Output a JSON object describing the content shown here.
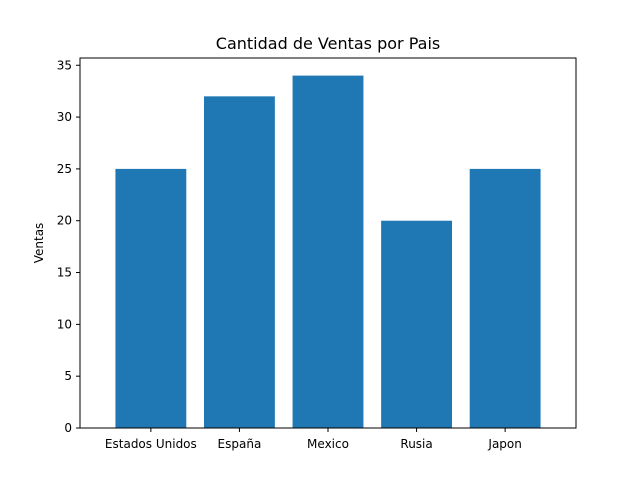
{
  "chart_data": {
    "type": "bar",
    "title": "Cantidad de Ventas por Pais",
    "xlabel": "",
    "ylabel": "Ventas",
    "categories": [
      "Estados Unidos",
      "España",
      "Mexico",
      "Rusia",
      "Japon"
    ],
    "values": [
      25,
      32,
      34,
      20,
      25
    ],
    "ylim": [
      0,
      35.7
    ],
    "yticks": [
      0,
      5,
      10,
      15,
      20,
      25,
      30,
      35
    ],
    "grid": false,
    "bar_color": "#1f77b4"
  }
}
